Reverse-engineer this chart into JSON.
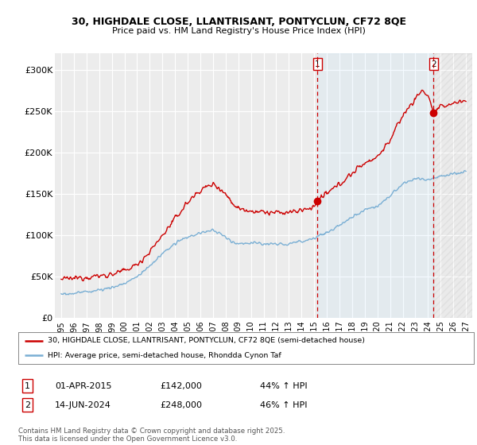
{
  "title_line1": "30, HIGHDALE CLOSE, LLANTRISANT, PONTYCLUN, CF72 8QE",
  "title_line2": "Price paid vs. HM Land Registry's House Price Index (HPI)",
  "bg_color": "#ffffff",
  "plot_bg_color": "#ececec",
  "grid_color": "#ffffff",
  "red_color": "#cc0000",
  "blue_color": "#7aafd4",
  "dashed_red": "#cc0000",
  "marker1_date": 2015.25,
  "marker2_date": 2024.45,
  "marker1_price": 142000,
  "marker2_price": 248000,
  "annotation1": "1",
  "annotation2": "2",
  "ylim_min": 0,
  "ylim_max": 320000,
  "xlim_min": 1994.5,
  "xlim_max": 2027.5,
  "legend_line1": "30, HIGHDALE CLOSE, LLANTRISANT, PONTYCLUN, CF72 8QE (semi-detached house)",
  "legend_line2": "HPI: Average price, semi-detached house, Rhondda Cynon Taf",
  "table_row1": [
    "1",
    "01-APR-2015",
    "£142,000",
    "44% ↑ HPI"
  ],
  "table_row2": [
    "2",
    "14-JUN-2024",
    "£248,000",
    "46% ↑ HPI"
  ],
  "footer": "Contains HM Land Registry data © Crown copyright and database right 2025.\nThis data is licensed under the Open Government Licence v3.0.",
  "yticks": [
    0,
    50000,
    100000,
    150000,
    200000,
    250000,
    300000
  ],
  "ytick_labels": [
    "£0",
    "£50K",
    "£100K",
    "£150K",
    "£200K",
    "£250K",
    "£300K"
  ],
  "xticks": [
    1995,
    1996,
    1997,
    1998,
    1999,
    2000,
    2001,
    2002,
    2003,
    2004,
    2005,
    2006,
    2007,
    2008,
    2009,
    2010,
    2011,
    2012,
    2013,
    2014,
    2015,
    2016,
    2017,
    2018,
    2019,
    2020,
    2021,
    2022,
    2023,
    2024,
    2025,
    2026,
    2027
  ]
}
